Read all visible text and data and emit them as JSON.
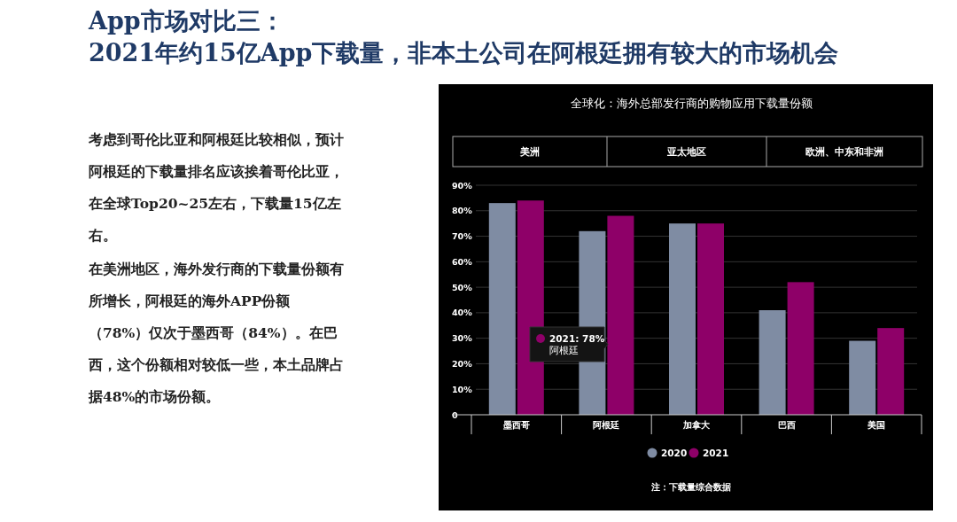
{
  "chart_data": {
    "type": "bar",
    "title": "全球化：海外总部发行商的购物应用下载量份额",
    "categories": [
      "墨西哥",
      "阿根廷",
      "加拿大",
      "巴西",
      "美国"
    ],
    "series": [
      {
        "name": "2020",
        "color": "#7f8ca3",
        "values": [
          83,
          72,
          75,
          41,
          29
        ]
      },
      {
        "name": "2021",
        "color": "#8e0068",
        "values": [
          84,
          78,
          75,
          52,
          34
        ]
      }
    ],
    "ylim": [
      0,
      90
    ],
    "yticks": [
      0,
      {
        "value": 10,
        "label": "10%"
      },
      {
        "value": 20,
        "label": "20%"
      },
      {
        "value": 30,
        "label": "30%"
      },
      {
        "value": 40,
        "label": "40%"
      },
      {
        "value": 50,
        "label": "50%"
      },
      {
        "value": 60,
        "label": "60%"
      },
      {
        "value": 70,
        "label": "70%"
      },
      {
        "value": 80,
        "label": "80%"
      },
      {
        "value": 90,
        "label": "90%"
      }
    ],
    "grid": "y",
    "legend": "bottom",
    "annotations": [
      "App市场对比三：",
      "2021年约15亿App下载量，非本土公司在阿根廷拥有较大的市场机会",
      "考虑到哥伦比亚和阿根廷比较相似，预计阿根廷的下载量排名应该挨着哥伦比亚，在全球Top20~25左右，下载量15亿左右。",
      "在美洲地区，海外发行商的下载量份额有所增长，阿根廷的海外APP份额（78%）仅次于墨西哥（84%）。在巴西，这个份额相对较低一些，本土品牌占据48%的市场份额。",
      "美洲",
      "亚太地区",
      "欧洲、中东和非洲",
      "2021: 78%\n阿根廷",
      "注：下载量综合数据"
    ]
  }
}
